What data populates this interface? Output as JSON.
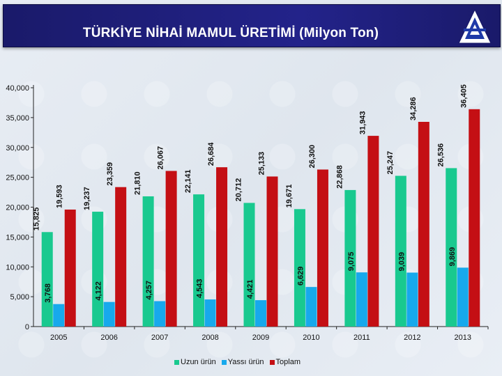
{
  "header": {
    "title": "TÜRKİYE NİHAİ MAMUL ÜRETİMİ (Milyon Ton)",
    "logo_icon": "triangle-logo-icon"
  },
  "colors": {
    "uzun": "#19c98f",
    "yassi": "#17a9ec",
    "toplam": "#c40f14",
    "title_bg": "#1f1f7f"
  },
  "chart_data": {
    "type": "bar",
    "title": "TÜRKİYE NİHAİ MAMUL ÜRETİMİ (Milyon Ton)",
    "categories": [
      "2005",
      "2006",
      "2007",
      "2008",
      "2009",
      "2010",
      "2011",
      "2012",
      "2013"
    ],
    "series": [
      {
        "name": "Uzun ürün",
        "values": [
          15.825,
          19.237,
          21.81,
          22.141,
          20.712,
          19.671,
          22.868,
          25.247,
          26.536
        ],
        "labels": [
          "15,825",
          "19,237",
          "21,810",
          "22,141",
          "20,712",
          "19,671",
          "22,868",
          "25,247",
          "26,536"
        ]
      },
      {
        "name": "Yassı ürün",
        "values": [
          3.768,
          4.122,
          4.257,
          4.543,
          4.421,
          6.629,
          9.075,
          9.039,
          9.869
        ],
        "labels": [
          "3,768",
          "4,122",
          "4,257",
          "4,543",
          "4,421",
          "6,629",
          "9,075",
          "9,039",
          "9,869"
        ]
      },
      {
        "name": "Toplam",
        "values": [
          19.593,
          23.359,
          26.067,
          26.684,
          25.133,
          26.3,
          31.943,
          34.286,
          36.405
        ],
        "labels": [
          "19,593",
          "23,359",
          "26,067",
          "26,684",
          "25,133",
          "26,300",
          "31,943",
          "34,286",
          "36,405"
        ]
      }
    ],
    "y_ticks": [
      "0",
      "5,000",
      "10,000",
      "15,000",
      "20,000",
      "25,000",
      "30,000",
      "35,000",
      "40,000"
    ],
    "ylim": [
      0,
      40
    ],
    "xlabel": "",
    "ylabel": "",
    "grid": false,
    "legend_position": "bottom"
  }
}
